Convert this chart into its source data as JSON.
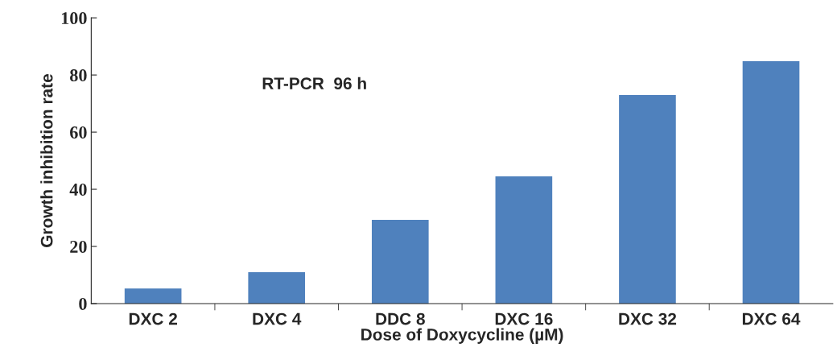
{
  "chart_data": {
    "type": "bar",
    "xlabel": "Dose of Doxycycline (µM)",
    "ylabel": "Growth inhibition rate",
    "categories": [
      "DXC 2",
      "DXC 4",
      "DDC 8",
      "DXC 16",
      "DXC 32",
      "DXC 64"
    ],
    "values": [
      5.3,
      11,
      29.3,
      44.5,
      73,
      84.8
    ],
    "color": "#4f81bd",
    "ylim": [
      0,
      100
    ],
    "yticks": [
      0,
      20,
      40,
      60,
      80,
      100
    ],
    "grid": false,
    "annotations": [
      "RT-PCR  96 h"
    ]
  }
}
